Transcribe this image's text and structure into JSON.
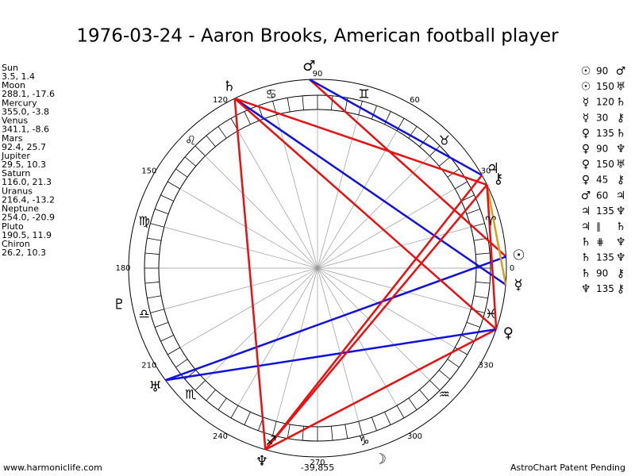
{
  "header": {
    "title": "1976-03-24 - Aaron Brooks, American football player"
  },
  "planets": [
    {
      "name": "Sun",
      "position": "3.5, 1.4",
      "glyph": "☉"
    },
    {
      "name": "Moon",
      "position": "288.1, -17.6",
      "glyph": "☽"
    },
    {
      "name": "Mercury",
      "position": "355.0, -3.8",
      "glyph": "☿"
    },
    {
      "name": "Venus",
      "position": "341.1, -8.6",
      "glyph": "♀"
    },
    {
      "name": "Mars",
      "position": "92.4, 25.7",
      "glyph": "♂"
    },
    {
      "name": "Jupiter",
      "position": "29.5, 10.3",
      "glyph": "♃"
    },
    {
      "name": "Saturn",
      "position": "116.0, 21.3",
      "glyph": "♄"
    },
    {
      "name": "Uranus",
      "position": "216.4, -13.2",
      "glyph": "♅"
    },
    {
      "name": "Neptune",
      "position": "254.0, -20.9",
      "glyph": "♆"
    },
    {
      "name": "Pluto",
      "position": "190.5, 11.9",
      "glyph": "♇"
    },
    {
      "name": "Chiron",
      "position": "26.2, 10.3",
      "glyph": "⚷"
    }
  ],
  "signs": [
    "♈",
    "♉",
    "♊",
    "♋",
    "♌",
    "♍",
    "♎",
    "♏",
    "♐",
    "♑",
    "♒",
    "♓"
  ],
  "degree_labels": [
    0,
    30,
    60,
    90,
    120,
    150,
    180,
    210,
    240,
    270,
    300,
    330
  ],
  "aspects": [
    {
      "a": "☉",
      "aspect": 90,
      "b": "♂"
    },
    {
      "a": "☉",
      "aspect": 150,
      "b": "♅"
    },
    {
      "a": "☿",
      "aspect": 120,
      "b": "♄"
    },
    {
      "a": "☿",
      "aspect": 30,
      "b": "⚷"
    },
    {
      "a": "♀",
      "aspect": 135,
      "b": "♄"
    },
    {
      "a": "♀",
      "aspect": 90,
      "b": "♆"
    },
    {
      "a": "♀",
      "aspect": 150,
      "b": "♅"
    },
    {
      "a": "♀",
      "aspect": 45,
      "b": "⚷"
    },
    {
      "a": "♂",
      "aspect": 60,
      "b": "♃"
    },
    {
      "a": "♃",
      "aspect": 135,
      "b": "♆"
    },
    {
      "a": "♃",
      "aspect": "∥",
      "b": "♄"
    },
    {
      "a": "♄",
      "aspect": "⋕",
      "b": "♆"
    },
    {
      "a": "♄",
      "aspect": 135,
      "b": "♆"
    },
    {
      "a": "♄",
      "aspect": 90,
      "b": "⚷"
    },
    {
      "a": "♆",
      "aspect": 135,
      "b": "⚷"
    }
  ],
  "center_value": "-39,855",
  "footer": {
    "left": "www.harmoniclife.com",
    "right": "AstroChart Patent Pending"
  }
}
